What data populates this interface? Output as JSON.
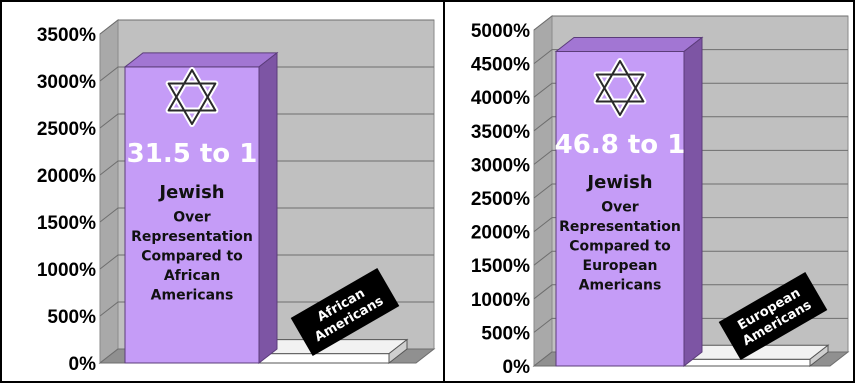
{
  "chart_data": [
    {
      "type": "bar",
      "categories": [
        "Jewish",
        "African Americans"
      ],
      "values": [
        3150,
        100
      ],
      "ylim": [
        0,
        3500
      ],
      "yticks": [
        "3500%",
        "3000%",
        "2500%",
        "2000%",
        "1500%",
        "1000%",
        "500%",
        "0%"
      ],
      "grid": true,
      "bar_annotation": {
        "ratio": "31.5 to 1",
        "lines": [
          "Jewish",
          "Over",
          "Representation",
          "Compared to",
          "African",
          "Americans"
        ]
      },
      "small_bar_label": [
        "African",
        "Americans"
      ],
      "colors": {
        "main_bar": "#c59cf7",
        "main_bar_side": "#7d55a4",
        "main_bar_top": "#a276d3",
        "small_bar": "#ffffff",
        "wall": "#c0c0c0"
      }
    },
    {
      "type": "bar",
      "categories": [
        "Jewish",
        "European Americans"
      ],
      "values": [
        4680,
        100
      ],
      "ylim": [
        0,
        5000
      ],
      "yticks": [
        "5000%",
        "4500%",
        "4000%",
        "3500%",
        "3000%",
        "2500%",
        "2000%",
        "1500%",
        "1000%",
        "500%",
        "0%"
      ],
      "grid": true,
      "bar_annotation": {
        "ratio": "46.8 to 1",
        "lines": [
          "Jewish",
          "Over",
          "Representation",
          "Compared to",
          "European",
          "Americans"
        ]
      },
      "small_bar_label": [
        "European",
        "Americans"
      ],
      "colors": {
        "main_bar": "#c59cf7",
        "main_bar_side": "#7d55a4",
        "main_bar_top": "#a276d3",
        "small_bar": "#ffffff",
        "wall": "#c0c0c0"
      }
    }
  ]
}
